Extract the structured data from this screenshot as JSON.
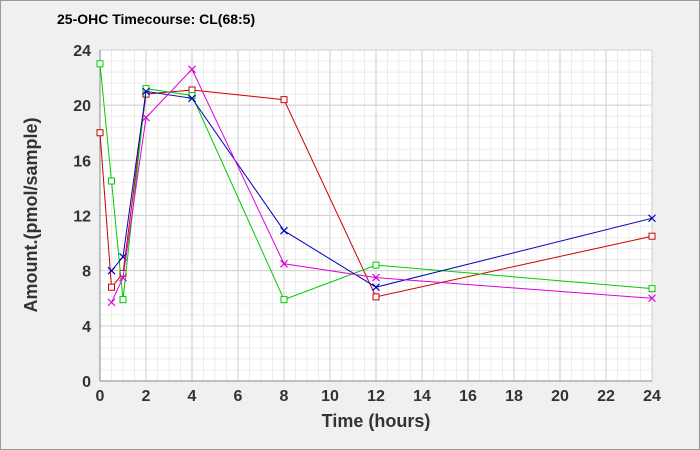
{
  "chart_data": {
    "type": "line",
    "title": "25-OHC Timecourse: CL(68:5)",
    "xlabel": "Time (hours)",
    "ylabel": "Amount.(pmol/sample)",
    "xlim": [
      0,
      24
    ],
    "ylim": [
      0,
      24
    ],
    "xticks": [
      0,
      2,
      4,
      6,
      8,
      10,
      12,
      14,
      16,
      18,
      20,
      22,
      24
    ],
    "yticks": [
      0,
      4,
      8,
      12,
      16,
      20,
      24
    ],
    "grid": true,
    "legend": false,
    "series": [
      {
        "color": "#cc0000",
        "marker": "square",
        "x": [
          0,
          0.5,
          1,
          2,
          4,
          8,
          12,
          24
        ],
        "y": [
          18.0,
          6.8,
          7.8,
          20.8,
          21.1,
          20.4,
          6.1,
          10.5
        ]
      },
      {
        "color": "#00cc00",
        "marker": "square",
        "x": [
          0,
          0.5,
          1,
          2,
          4,
          8,
          12,
          24
        ],
        "y": [
          23.0,
          14.5,
          5.9,
          21.2,
          20.7,
          5.9,
          8.4,
          6.7
        ]
      },
      {
        "color": "#0000bb",
        "marker": "x",
        "x": [
          0.5,
          1,
          2,
          4,
          8,
          12,
          24
        ],
        "y": [
          8.0,
          9.0,
          21.0,
          20.5,
          10.9,
          6.8,
          11.8
        ]
      },
      {
        "color": "#dd00dd",
        "marker": "x",
        "x": [
          0.5,
          1,
          2,
          4,
          8,
          12,
          24
        ],
        "y": [
          5.7,
          7.5,
          19.1,
          22.6,
          8.5,
          7.5,
          6.0
        ]
      }
    ]
  }
}
